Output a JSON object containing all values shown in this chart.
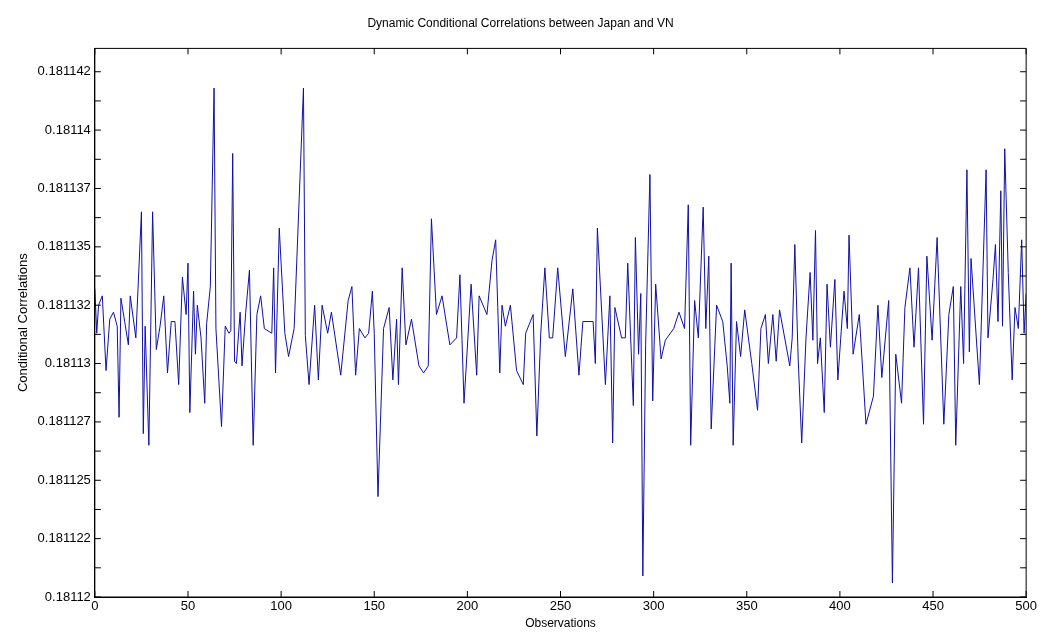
{
  "chart_data": {
    "type": "line",
    "title": "Dynamic Conditional Correlations between Japan and VN",
    "xlabel": "Observations",
    "ylabel": "Conditional Correlations",
    "grid": false,
    "legend": false,
    "marker": "none",
    "line_style": "solid",
    "xlim": [
      0,
      500
    ],
    "xticks": [
      0,
      50,
      100,
      150,
      200,
      250,
      300,
      350,
      400,
      450,
      500
    ],
    "ylim": [
      0.18112,
      0.1811435
    ],
    "yticks": [
      {
        "value": 0.18112,
        "label": "0.18112"
      },
      {
        "value": 0.18112125,
        "label": null
      },
      {
        "value": 0.1811225,
        "label": "0.181122"
      },
      {
        "value": 0.18112375,
        "label": null
      },
      {
        "value": 0.181125,
        "label": "0.181125"
      },
      {
        "value": 0.18112625,
        "label": null
      },
      {
        "value": 0.1811275,
        "label": "0.181127"
      },
      {
        "value": 0.18112875,
        "label": null
      },
      {
        "value": 0.18113,
        "label": "0.18113"
      },
      {
        "value": 0.18113125,
        "label": null
      },
      {
        "value": 0.1811325,
        "label": "0.181132"
      },
      {
        "value": 0.18113375,
        "label": null
      },
      {
        "value": 0.181135,
        "label": "0.181135"
      },
      {
        "value": 0.18113625,
        "label": null
      },
      {
        "value": 0.1811375,
        "label": "0.181137"
      },
      {
        "value": 0.18113875,
        "label": null
      },
      {
        "value": 0.18114,
        "label": "0.18114"
      },
      {
        "value": 0.18114125,
        "label": null
      },
      {
        "value": 0.1811425,
        "label": "0.181142"
      }
    ],
    "series": [
      {
        "color": "#1010a8",
        "x": [
          0,
          1,
          2,
          4,
          6,
          8,
          10,
          12,
          13,
          14,
          16,
          18,
          19,
          22,
          25,
          26,
          27,
          29,
          31,
          33,
          35,
          37,
          39,
          41,
          43,
          45,
          47,
          49,
          50,
          51,
          53,
          54,
          55,
          57,
          59,
          60,
          62,
          64,
          65,
          68,
          70,
          72,
          73,
          74,
          75,
          76,
          78,
          79,
          81,
          83,
          85,
          87,
          89,
          91,
          95,
          96,
          97,
          99,
          102,
          104,
          107,
          112,
          113,
          115,
          118,
          120,
          122,
          125,
          127,
          132,
          136,
          138,
          140,
          142,
          145,
          147,
          149,
          150,
          152,
          155,
          158,
          160,
          162,
          163,
          165,
          167,
          170,
          174,
          176.5,
          179,
          180.7,
          183.4,
          186.4,
          190.6,
          194.2,
          196,
          198.2,
          202,
          205,
          206.3,
          210.5,
          213.2,
          215.2,
          217.4,
          218.6,
          220.4,
          223.1,
          226.4,
          230,
          231.3,
          235.3,
          237.3,
          239.4,
          241.6,
          244,
          245.8,
          248.5,
          252.6,
          256.6,
          259.9,
          262,
          267.5,
          268.7,
          269.8,
          274.1,
          276.5,
          278,
          279.2,
          282.8,
          284.8,
          286.1,
          289.1,
          290.2,
          291.9,
          293.1,
          294.2,
          295.7,
          298,
          299.5,
          301.1,
          304,
          306.3,
          310.8,
          313.6,
          316.6,
          318.6,
          319.9,
          322,
          324,
          326.6,
          328,
          329.6,
          330.9,
          333.8,
          337.1,
          339.5,
          340.9,
          341.6,
          342.7,
          344.5,
          346.7,
          348.9,
          352.7,
          355.8,
          357.6,
          360,
          361.6,
          364,
          365.8,
          367.6,
          373.1,
          374.4,
          375.8,
          377.6,
          379.5,
          381.8,
          384,
          385.5,
          386.9,
          388,
          389.5,
          391.6,
          393.1,
          394.9,
          397.3,
          398.9,
          402.2,
          404,
          404.9,
          407.1,
          410.4,
          414,
          418,
          420.4,
          422.5,
          426.2,
          428.2,
          430,
          433.1,
          434.9,
          437.6,
          439.8,
          442.2,
          444.9,
          446.7,
          449.5,
          452.2,
          455.8,
          458.5,
          460.9,
          462.2,
          464.9,
          466.4,
          468.2,
          469.5,
          470.4,
          474.9,
          478.5,
          479.5,
          482.2,
          483.5,
          484.9,
          486.4,
          487.3,
          488.5,
          490.4,
          492.5,
          494,
          495.8,
          497.6,
          498.9,
          500
        ],
        "values": [
          0.1811332,
          0.1811313,
          0.1811325,
          0.1811329,
          0.1811297,
          0.1811319,
          0.1811322,
          0.1811316,
          0.1811277,
          0.1811328,
          0.1811318,
          0.1811308,
          0.1811329,
          0.1811311,
          0.1811365,
          0.181127,
          0.1811316,
          0.1811265,
          0.1811365,
          0.1811306,
          0.1811316,
          0.1811329,
          0.1811296,
          0.1811318,
          0.1811318,
          0.1811291,
          0.1811337,
          0.1811321,
          0.1811343,
          0.1811279,
          0.1811331,
          0.1811304,
          0.1811325,
          0.1811311,
          0.1811283,
          0.1811317,
          0.1811333,
          0.1811418,
          0.1811315,
          0.1811273,
          0.1811316,
          0.1811313,
          0.1811314,
          0.181139,
          0.1811301,
          0.18113,
          0.1811322,
          0.1811299,
          0.1811322,
          0.181134,
          0.1811265,
          0.1811321,
          0.1811329,
          0.1811315,
          0.1811313,
          0.1811341,
          0.1811296,
          0.1811358,
          0.1811313,
          0.1811303,
          0.1811315,
          0.1811418,
          0.1811312,
          0.1811291,
          0.1811325,
          0.1811293,
          0.1811325,
          0.1811313,
          0.1811322,
          0.1811295,
          0.1811327,
          0.1811333,
          0.1811295,
          0.1811315,
          0.1811311,
          0.1811313,
          0.1811331,
          0.1811313,
          0.1811243,
          0.1811315,
          0.1811324,
          0.1811293,
          0.1811319,
          0.1811291,
          0.1811341,
          0.1811308,
          0.1811319,
          0.1811299,
          0.1811296,
          0.1811299,
          0.1811362,
          0.1811321,
          0.1811329,
          0.1811308,
          0.1811311,
          0.1811338,
          0.1811283,
          0.1811334,
          0.1811295,
          0.1811329,
          0.1811321,
          0.1811344,
          0.1811353,
          0.1811296,
          0.1811325,
          0.1811316,
          0.1811325,
          0.1811297,
          0.1811291,
          0.1811313,
          0.1811321,
          0.1811269,
          0.1811313,
          0.1811341,
          0.1811311,
          0.1811311,
          0.1811341,
          0.1811303,
          0.1811332,
          0.1811295,
          0.1811318,
          0.1811318,
          0.18113,
          0.1811358,
          0.1811291,
          0.1811329,
          0.1811266,
          0.1811324,
          0.1811311,
          0.1811311,
          0.1811343,
          0.1811282,
          0.1811354,
          0.1811304,
          0.181133,
          0.1811209,
          0.1811308,
          0.1811381,
          0.1811284,
          0.1811334,
          0.1811302,
          0.181131,
          0.1811315,
          0.1811322,
          0.1811315,
          0.1811368,
          0.1811265,
          0.1811327,
          0.1811311,
          0.1811367,
          0.1811315,
          0.1811346,
          0.1811272,
          0.1811325,
          0.1811318,
          0.1811299,
          0.1811283,
          0.1811343,
          0.1811265,
          0.1811318,
          0.1811303,
          0.1811323,
          0.18113,
          0.181128,
          0.1811315,
          0.1811321,
          0.18113,
          0.1811321,
          0.1811301,
          0.1811323,
          0.1811299,
          0.1811311,
          0.1811351,
          0.1811302,
          0.1811266,
          0.1811311,
          0.1811339,
          0.181131,
          0.1811357,
          0.18113,
          0.1811311,
          0.1811279,
          0.1811334,
          0.1811307,
          0.1811336,
          0.1811293,
          0.1811331,
          0.1811315,
          0.1811355,
          0.1811304,
          0.1811321,
          0.1811274,
          0.1811286,
          0.1811325,
          0.1811294,
          0.1811327,
          0.1811206,
          0.1811304,
          0.1811283,
          0.1811324,
          0.1811341,
          0.1811307,
          0.1811341,
          0.1811274,
          0.1811346,
          0.181131,
          0.1811354,
          0.1811274,
          0.1811321,
          0.1811333,
          0.1811265,
          0.1811333,
          0.18113,
          0.1811383,
          0.1811305,
          0.1811345,
          0.1811291,
          0.1811383,
          0.1811311,
          0.1811336,
          0.1811351,
          0.1811318,
          0.1811374,
          0.1811316,
          0.1811392,
          0.1811339,
          0.1811293,
          0.1811324,
          0.1811315,
          0.1811353,
          0.1811313,
          0.181133
        ]
      }
    ]
  }
}
